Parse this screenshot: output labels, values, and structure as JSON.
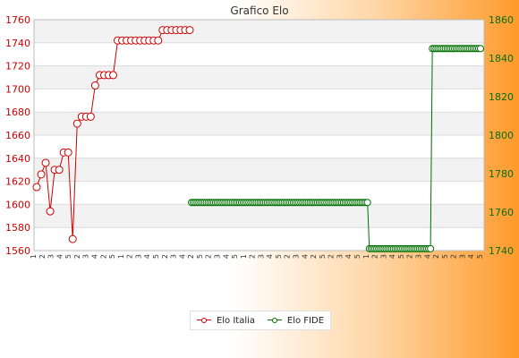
{
  "chart_data": {
    "type": "line",
    "title": "Grafico Elo",
    "left_axis": {
      "ylim": [
        1560,
        1760
      ],
      "ticks": [
        1560,
        1580,
        1600,
        1620,
        1640,
        1660,
        1680,
        1700,
        1720,
        1740,
        1760
      ],
      "color": "#cc0000"
    },
    "right_axis": {
      "ylim": [
        1740,
        1860
      ],
      "ticks": [
        1740,
        1760,
        1780,
        1800,
        1820,
        1840,
        1860
      ],
      "color": "#007000"
    },
    "grid": true,
    "legend_position": "bottom-center",
    "series": [
      {
        "name": "Elo Italia",
        "axis": "left",
        "color": "#cc0000",
        "values": [
          1615,
          1626,
          1636,
          1594,
          1630,
          1630,
          1645,
          1645,
          1570,
          1670,
          1676,
          1676,
          1676,
          1703,
          1712,
          1712,
          1712,
          1712,
          1742,
          1742,
          1742,
          1742,
          1742,
          1742,
          1742,
          1742,
          1742,
          1742,
          1751,
          1751,
          1751,
          1751,
          1751,
          1751,
          1751
        ]
      },
      {
        "name": "Elo FIDE",
        "axis": "right",
        "color": "#007000",
        "values": [
          1765,
          1765,
          1765,
          1765,
          1765,
          1765,
          1765,
          1765,
          1765,
          1765,
          1765,
          1765,
          1765,
          1765,
          1765,
          1765,
          1765,
          1765,
          1765,
          1765,
          1765,
          1765,
          1765,
          1765,
          1765,
          1765,
          1765,
          1765,
          1765,
          1765,
          1765,
          1765,
          1765,
          1765,
          1765,
          1765,
          1765,
          1765,
          1765,
          1765,
          1765,
          1765,
          1765,
          1765,
          1765,
          1765,
          1765,
          1765,
          1765,
          1765,
          1765,
          1765,
          1765,
          1765,
          1765,
          1765,
          1765,
          1765,
          1765,
          1765,
          1765,
          1765,
          1765,
          1765,
          1765,
          1765,
          1765,
          1765,
          1765,
          1765,
          1765,
          1765,
          1765,
          1765,
          1765,
          1765,
          1765,
          1765,
          1765,
          1765,
          1765,
          1765,
          1765,
          1765,
          1765,
          1765,
          1765,
          1765,
          1765,
          1765,
          1765,
          1765,
          1765,
          1765,
          1765,
          1765,
          1741,
          1741,
          1741,
          1741,
          1741,
          1741,
          1741,
          1741,
          1741,
          1741,
          1741,
          1741,
          1741,
          1741,
          1741,
          1741,
          1741,
          1741,
          1741,
          1741,
          1741,
          1741,
          1741,
          1741,
          1741,
          1741,
          1741,
          1741,
          1741,
          1741,
          1741,
          1741,
          1741,
          1741,
          1845,
          1845,
          1845,
          1845,
          1845,
          1845,
          1845,
          1845,
          1845,
          1845,
          1845,
          1845,
          1845,
          1845,
          1845,
          1845,
          1845,
          1845,
          1845,
          1845,
          1845,
          1845,
          1845,
          1845,
          1845,
          1845,
          1845
        ]
      }
    ],
    "x_tick_labels": [
      "1",
      "2",
      "3",
      "4",
      "5",
      "2",
      "3",
      "4",
      "2",
      "5",
      "1",
      "2",
      "3",
      "4",
      "5",
      "2",
      "3",
      "4",
      "2",
      "5",
      "2",
      "3",
      "4",
      "5",
      "1",
      "2",
      "3",
      "4",
      "5",
      "2",
      "3",
      "4",
      "2",
      "5",
      "2",
      "3",
      "4",
      "5",
      "1",
      "2",
      "3",
      "4",
      "5",
      "2",
      "3",
      "4",
      "2",
      "5",
      "2",
      "3",
      "4",
      "5"
    ]
  }
}
